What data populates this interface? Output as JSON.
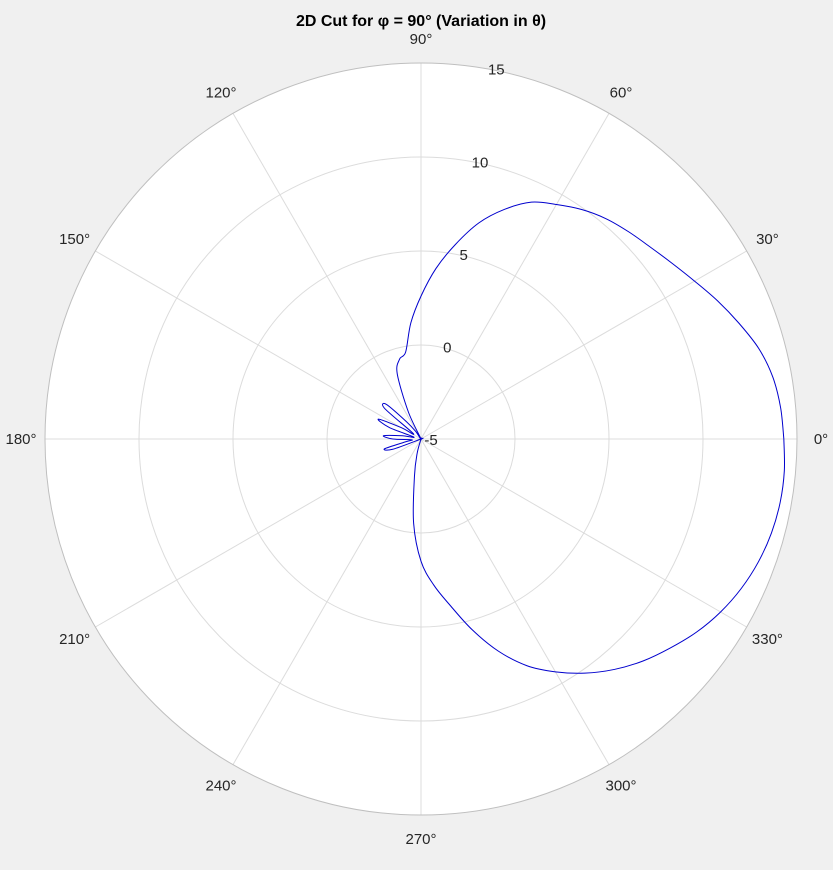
{
  "window": {
    "background": "#f0f0f0"
  },
  "chart_data": {
    "type": "polar-line",
    "title": "2D Cut for φ = 90° (Variation in θ)",
    "rlim": [
      -5,
      15
    ],
    "r_ticks": [
      {
        "value": -5,
        "label": "-5"
      },
      {
        "value": 0,
        "label": "0"
      },
      {
        "value": 5,
        "label": "5"
      },
      {
        "value": 10,
        "label": "10"
      },
      {
        "value": 15,
        "label": "15"
      }
    ],
    "theta_ticks": [
      {
        "value": 0,
        "label": "0°"
      },
      {
        "value": 30,
        "label": "30°"
      },
      {
        "value": 60,
        "label": "60°"
      },
      {
        "value": 90,
        "label": "90°"
      },
      {
        "value": 120,
        "label": "120°"
      },
      {
        "value": 150,
        "label": "150°"
      },
      {
        "value": 180,
        "label": "180°"
      },
      {
        "value": 210,
        "label": "210°"
      },
      {
        "value": 240,
        "label": "240°"
      },
      {
        "value": 270,
        "label": "270°"
      },
      {
        "value": 300,
        "label": "300°"
      },
      {
        "value": 330,
        "label": "330°"
      }
    ],
    "grid": true,
    "legend": "none",
    "colors": {
      "plot_background": "#ffffff",
      "grid": "#dcdcdc",
      "axis_outline": "#bfbfbf",
      "series": "#0000cd"
    },
    "series": [
      {
        "theta": [
          0,
          5,
          10,
          15,
          20,
          25,
          30,
          35,
          40,
          45,
          50,
          55,
          60,
          65,
          70,
          75,
          80,
          85,
          90,
          95,
          100,
          105,
          110,
          115,
          120,
          125,
          130,
          135,
          140,
          145,
          150,
          155,
          160,
          165,
          170,
          175,
          180,
          185,
          190,
          195,
          200,
          205,
          210,
          215,
          220,
          225,
          230,
          235,
          240,
          245,
          250,
          255,
          260,
          265,
          270,
          275,
          280,
          285,
          290,
          295,
          300,
          305,
          310,
          315,
          320,
          325,
          330,
          335,
          340,
          345,
          350,
          355,
          360
        ],
        "r": [
          14.3,
          14.2,
          14.0,
          13.6,
          13.0,
          12.4,
          11.8,
          11.3,
          10.9,
          10.6,
          10.3,
          9.9,
          9.4,
          8.9,
          8.0,
          6.9,
          5.5,
          4.1,
          2.6,
          1.2,
          -0.3,
          -0.6,
          -1.3,
          -3.4,
          -5.0,
          -4.5,
          -3.8,
          -2.4,
          -2.5,
          -4.5,
          -3.8,
          -2.5,
          -3.2,
          -4.6,
          -4.0,
          -3.0,
          -3.5,
          -4.5,
          -4.2,
          -3.0,
          -3.4,
          -5.0,
          -5.0,
          -5.0,
          -5.0,
          -5.0,
          -5.0,
          -5.0,
          -5.0,
          -5.0,
          -5.0,
          -4.2,
          -3.0,
          -0.5,
          1.5,
          2.8,
          4.0,
          5.5,
          7.0,
          8.3,
          9.3,
          10.2,
          11.0,
          11.7,
          12.3,
          12.9,
          13.4,
          13.8,
          14.1,
          14.3,
          14.4,
          14.4,
          14.3
        ]
      }
    ]
  }
}
